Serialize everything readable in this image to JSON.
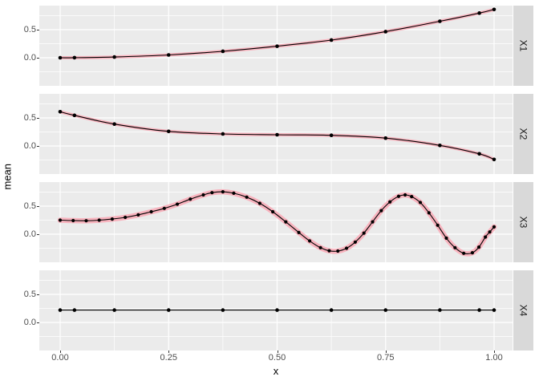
{
  "chart_data": {
    "type": "line",
    "title": "",
    "xlabel": "x",
    "ylabel": "mean",
    "grid": true,
    "legend": "none",
    "faceting": {
      "strip_position": "right",
      "facet_labels": [
        "X1",
        "X2",
        "X3",
        "X4"
      ]
    },
    "x_axis": {
      "label": "x",
      "tick_labels": [
        "0.00",
        "0.25",
        "0.50",
        "0.75",
        "1.00"
      ],
      "tick_values": [
        0,
        0.25,
        0.5,
        0.75,
        1.0
      ],
      "minor_values": [
        0.125,
        0.375,
        0.625,
        0.875
      ],
      "range": [
        -0.048,
        1.041
      ]
    },
    "y_axis": {
      "label": "mean",
      "tick_labels": [
        "0.5",
        "0.0"
      ],
      "tick_values": [
        0.5,
        0.0
      ],
      "minor_values": [
        0.75,
        0.25,
        -0.25
      ],
      "range": [
        -0.5,
        0.928
      ]
    },
    "panels": [
      {
        "label": "X1",
        "truth_line": true,
        "dense": false,
        "x": [
          0,
          0.033,
          0.125,
          0.25,
          0.375,
          0.5,
          0.625,
          0.75,
          0.875,
          0.966,
          1.0
        ],
        "y": [
          0,
          0.001,
          0.013,
          0.05,
          0.115,
          0.205,
          0.315,
          0.465,
          0.65,
          0.795,
          0.86
        ]
      },
      {
        "label": "X2",
        "truth_line": true,
        "dense": false,
        "x": [
          0,
          0.033,
          0.125,
          0.25,
          0.375,
          0.5,
          0.625,
          0.75,
          0.875,
          0.966,
          1.0
        ],
        "y": [
          0.61,
          0.545,
          0.39,
          0.26,
          0.215,
          0.2,
          0.19,
          0.14,
          0.01,
          -0.14,
          -0.24
        ]
      },
      {
        "label": "X3",
        "truth_line": true,
        "dense": true,
        "x": [
          0,
          0.03,
          0.06,
          0.09,
          0.12,
          0.15,
          0.18,
          0.21,
          0.24,
          0.27,
          0.3,
          0.33,
          0.35,
          0.375,
          0.4,
          0.43,
          0.46,
          0.49,
          0.52,
          0.55,
          0.575,
          0.6,
          0.62,
          0.64,
          0.66,
          0.68,
          0.7,
          0.72,
          0.74,
          0.76,
          0.78,
          0.795,
          0.81,
          0.83,
          0.85,
          0.87,
          0.89,
          0.91,
          0.93,
          0.95,
          0.965,
          0.98,
          0.99,
          1.0
        ],
        "y": [
          0.25,
          0.243,
          0.24,
          0.25,
          0.27,
          0.3,
          0.345,
          0.4,
          0.46,
          0.535,
          0.625,
          0.7,
          0.74,
          0.755,
          0.73,
          0.66,
          0.55,
          0.4,
          0.22,
          0.03,
          -0.12,
          -0.24,
          -0.295,
          -0.3,
          -0.25,
          -0.14,
          0.02,
          0.22,
          0.42,
          0.575,
          0.675,
          0.7,
          0.67,
          0.565,
          0.38,
          0.16,
          -0.07,
          -0.24,
          -0.34,
          -0.33,
          -0.23,
          -0.05,
          0.04,
          0.13
        ]
      },
      {
        "label": "X4",
        "truth_line": false,
        "dense": false,
        "x": [
          0,
          0.033,
          0.125,
          0.25,
          0.375,
          0.5,
          0.625,
          0.75,
          0.875,
          0.966,
          1.0
        ],
        "y": [
          0.22,
          0.22,
          0.22,
          0.22,
          0.22,
          0.22,
          0.22,
          0.22,
          0.22,
          0.22,
          0.22
        ]
      }
    ],
    "style": {
      "panel_bg": "#EBEBEB",
      "strip_bg": "#D9D9D9",
      "grid_color": "#FFFFFF",
      "line_color": "#000000",
      "point_color": "#000000",
      "truth_color": "#F8B3BE",
      "axis_text_color": "#4D4D4D",
      "strip_text_color": "#1A1A1A",
      "tick_mark_color": "#333333",
      "figure_bg": "#FFFFFF"
    }
  }
}
